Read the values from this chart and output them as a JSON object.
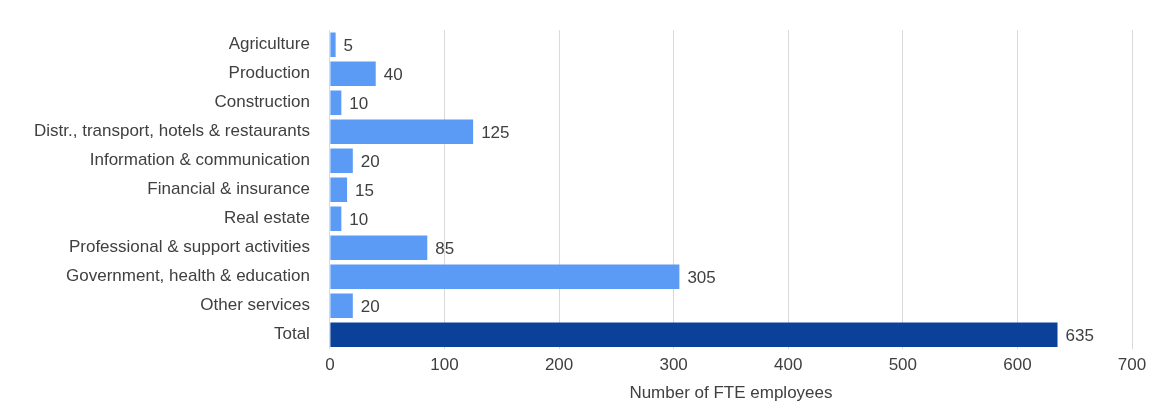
{
  "chart_data": {
    "type": "bar",
    "orientation": "horizontal",
    "xlabel": "Number of FTE employees",
    "categories": [
      "Agriculture",
      "Production",
      "Construction",
      "Distr., transport, hotels & restaurants",
      "Information & communication",
      "Financial & insurance",
      "Real estate",
      "Professional & support activities",
      "Government, health & education",
      "Other services",
      "Total"
    ],
    "values": [
      5,
      40,
      10,
      125,
      20,
      15,
      10,
      85,
      305,
      20,
      635
    ],
    "colors": [
      "#5b9bf6",
      "#5b9bf6",
      "#5b9bf6",
      "#5b9bf6",
      "#5b9bf6",
      "#5b9bf6",
      "#5b9bf6",
      "#5b9bf6",
      "#5b9bf6",
      "#5b9bf6",
      "#0b4199"
    ],
    "xlim": [
      0,
      700
    ],
    "xticks": [
      0,
      100,
      200,
      300,
      400,
      500,
      600,
      700
    ],
    "grid": "x",
    "legend": false,
    "data_labels": true
  }
}
